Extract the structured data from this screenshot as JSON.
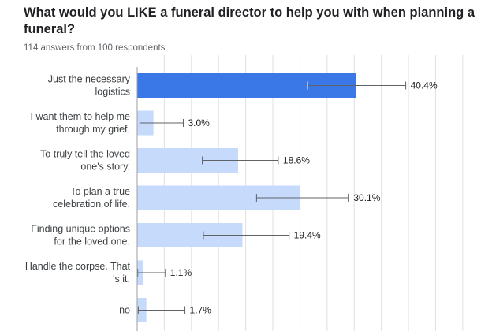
{
  "chart_data": {
    "type": "bar",
    "orientation": "horizontal",
    "title": "What would you LIKE a funeral director to help you with when planning a funeral?",
    "subtitle": "114 answers from 100 respondents",
    "categories": [
      [
        "Just the necessary",
        "logistics"
      ],
      [
        "I want them to help me",
        "through my grief."
      ],
      [
        "To truly tell the loved",
        "one's story."
      ],
      [
        "To plan a true",
        "celebration of life."
      ],
      [
        "Finding unique options",
        "for the loved one."
      ],
      [
        "Handle the corpse. That",
        "'s it."
      ],
      [
        "no"
      ]
    ],
    "values": [
      40.4,
      3.0,
      18.6,
      30.1,
      19.4,
      1.1,
      1.7
    ],
    "value_labels": [
      "40.4%",
      "3.0%",
      "18.6%",
      "30.1%",
      "19.4%",
      "1.1%",
      "1.7%"
    ],
    "error_low": [
      31.4,
      0.5,
      12.0,
      22.0,
      12.2,
      0.1,
      0.2
    ],
    "error_high": [
      49.5,
      8.5,
      26.0,
      39.0,
      28.0,
      5.2,
      8.8
    ],
    "xlim": [
      0,
      60
    ],
    "grid": true,
    "highlight_index": 0,
    "colors": {
      "highlight": "#3b78e7",
      "bar": "#c6dafc",
      "grid": "#e0e0e0",
      "axis": "#9e9e9e",
      "whisker": "#5f6368"
    }
  }
}
